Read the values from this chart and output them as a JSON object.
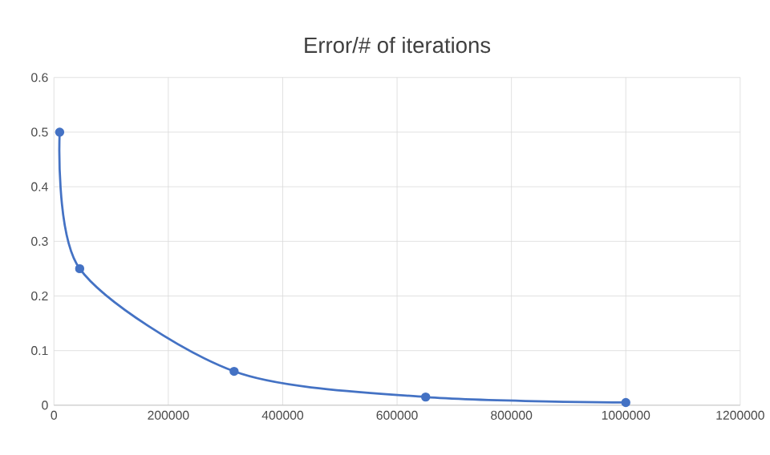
{
  "chart_data": {
    "type": "line",
    "title": "Error/# of iterations",
    "x": [
      10000,
      45000,
      315000,
      650000,
      1000000
    ],
    "series": [
      {
        "color": "#4472c4",
        "values": [
          0.5,
          0.25,
          0.062,
          0.015,
          0.005
        ]
      }
    ],
    "xlim": [
      0,
      1200000
    ],
    "xticks": [
      0,
      200000,
      400000,
      600000,
      800000,
      1000000,
      1200000
    ],
    "ylim": [
      0,
      0.6
    ],
    "yticks": [
      0,
      0.1,
      0.2,
      0.3,
      0.4,
      0.5,
      0.6
    ],
    "grid": true,
    "marker": "circle",
    "line_style": "solid"
  }
}
